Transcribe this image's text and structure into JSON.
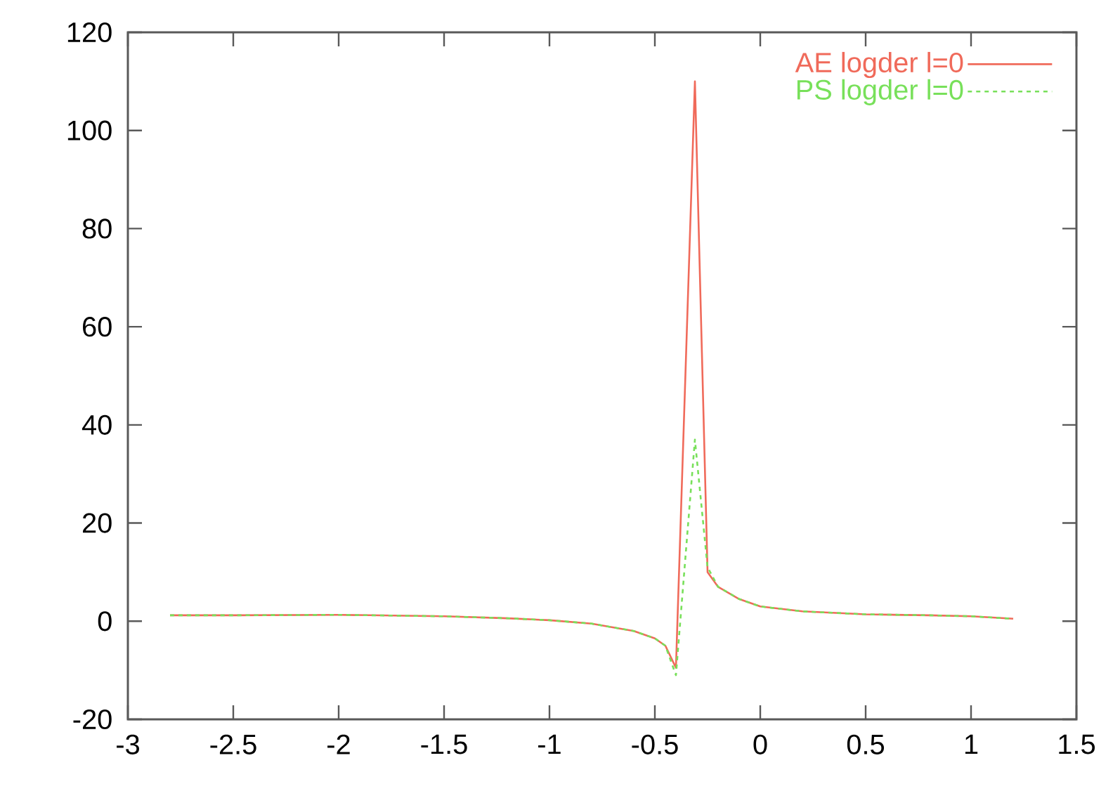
{
  "chart_data": {
    "type": "line",
    "x": [
      -2.8,
      -2.5,
      -2.0,
      -1.5,
      -1.2,
      -1.0,
      -0.8,
      -0.6,
      -0.5,
      -0.45,
      -0.4,
      -0.31,
      -0.25,
      -0.2,
      -0.1,
      0,
      0.2,
      0.5,
      0.8,
      1.0,
      1.2
    ],
    "series": [
      {
        "name": "AE logder l=0",
        "color": "#f06a5a",
        "line_style": "solid",
        "values": [
          1.2,
          1.2,
          1.3,
          1.0,
          0.6,
          0.2,
          -0.5,
          -2,
          -3.5,
          -5,
          -9.5,
          110,
          10,
          7,
          4.5,
          3,
          2,
          1.4,
          1.2,
          1.0,
          0.5
        ]
      },
      {
        "name": "PS logder l=0",
        "color": "#78e05a",
        "line_style": "dashed",
        "values": [
          1.2,
          1.2,
          1.3,
          1.0,
          0.6,
          0.2,
          -0.5,
          -2,
          -3.5,
          -5,
          -11,
          37,
          11,
          7,
          4.5,
          3,
          2,
          1.4,
          1.2,
          1.0,
          0.5
        ]
      }
    ],
    "xlim": [
      -3,
      1.5
    ],
    "ylim": [
      -20,
      120
    ],
    "xticks": [
      -3,
      -2.5,
      -2,
      -1.5,
      -1,
      -0.5,
      0,
      0.5,
      1,
      1.5
    ],
    "yticks": [
      -20,
      0,
      20,
      40,
      60,
      80,
      100,
      120
    ],
    "grid": false,
    "legend": "top right",
    "marker": "none"
  }
}
